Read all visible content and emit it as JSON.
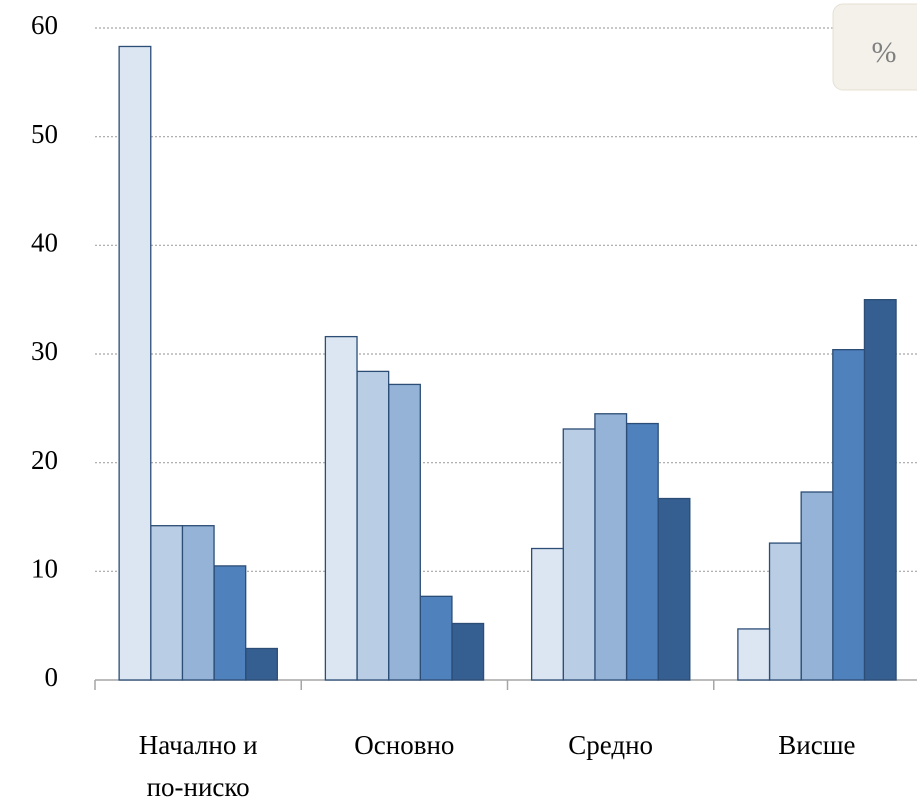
{
  "chart_data": {
    "type": "bar",
    "unit": "%",
    "categories": [
      "Начално и\nпо-ниско",
      "Основно",
      "Средно",
      "Висше"
    ],
    "series": [
      {
        "color": "#dce6f2",
        "values": [
          58.3,
          31.6,
          12.1,
          4.7
        ]
      },
      {
        "color": "#b9cde5",
        "values": [
          14.2,
          28.4,
          23.1,
          12.6
        ]
      },
      {
        "color": "#95b3d7",
        "values": [
          14.2,
          27.2,
          24.5,
          17.3
        ]
      },
      {
        "color": "#4f81bd",
        "values": [
          10.5,
          7.7,
          23.6,
          30.4
        ]
      },
      {
        "color": "#355f91",
        "values": [
          2.9,
          5.2,
          16.7,
          35.0
        ]
      }
    ],
    "ylim": [
      0,
      60
    ],
    "yticks": [
      0,
      10,
      20,
      30,
      40,
      50,
      60
    ],
    "grid": true
  }
}
